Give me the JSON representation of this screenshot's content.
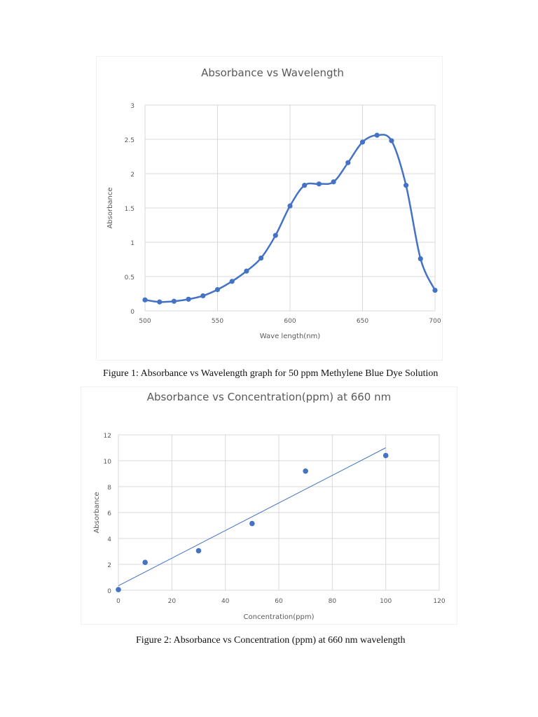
{
  "figures": [
    {
      "caption": "Figure 1: Absorbance vs Wavelength graph for 50 ppm Methylene Blue Dye Solution"
    },
    {
      "caption": "Figure 2: Absorbance vs Concentration (ppm) at 660 nm wavelength"
    }
  ],
  "colors": {
    "series": "#4472c4",
    "grid": "#d9d9d9",
    "title": "#595959",
    "tick": "#595959"
  },
  "chart_data": [
    {
      "type": "line",
      "title": "Absorbance vs Wavelength",
      "xlabel": "Wave length(nm)",
      "ylabel": "Absorbance",
      "xlim": [
        500,
        700
      ],
      "ylim": [
        0,
        3
      ],
      "xticks": [
        500,
        550,
        600,
        650,
        700
      ],
      "yticks": [
        0,
        0.5,
        1,
        1.5,
        2,
        2.5,
        3
      ],
      "ytick_labels": [
        "0",
        "0.5",
        "1",
        "1.5",
        "2",
        "2.5",
        "3"
      ],
      "grid": true,
      "smooth": true,
      "markers": true,
      "legend": null,
      "x": [
        500,
        510,
        520,
        530,
        540,
        550,
        560,
        570,
        580,
        590,
        600,
        610,
        620,
        630,
        640,
        650,
        660,
        670,
        680,
        690,
        700
      ],
      "series": [
        {
          "name": "Absorbance",
          "values": [
            0.16,
            0.13,
            0.14,
            0.17,
            0.22,
            0.31,
            0.43,
            0.58,
            0.77,
            1.1,
            1.53,
            1.83,
            1.85,
            1.88,
            2.16,
            2.46,
            2.56,
            2.48,
            1.83,
            0.76,
            0.3
          ]
        }
      ]
    },
    {
      "type": "scatter",
      "title": "Absorbance vs Concentration(ppm) at 660 nm",
      "xlabel": "Concentration(ppm)",
      "ylabel": "Absorbance",
      "xlim": [
        0,
        120
      ],
      "ylim": [
        0,
        12
      ],
      "xticks": [
        0,
        20,
        40,
        60,
        80,
        100,
        120
      ],
      "yticks": [
        0,
        2,
        4,
        6,
        8,
        10,
        12
      ],
      "grid": true,
      "legend": null,
      "x": [
        0,
        10,
        30,
        50,
        70,
        100
      ],
      "series": [
        {
          "name": "Absorbance",
          "values": [
            0.05,
            2.15,
            3.05,
            5.15,
            9.2,
            10.4
          ]
        }
      ],
      "trendline": {
        "type": "linear",
        "x": [
          0,
          100
        ],
        "y": [
          0.35,
          11.0
        ]
      }
    }
  ]
}
